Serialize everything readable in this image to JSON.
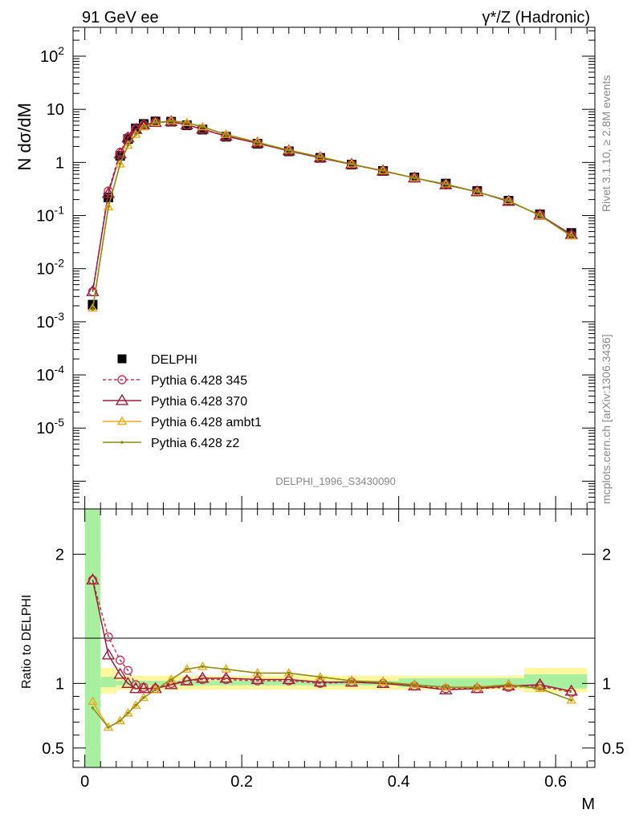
{
  "header": {
    "left": "91 GeV ee",
    "right": "γ*/Z (Hadronic)"
  },
  "side_labels": {
    "rivet": "Rivet 3.1.10, ≥ 2.8M events",
    "mcplots": "mcplots.cern.ch [arXiv:1306.3436]"
  },
  "watermark": "DELPHI_1996_S3430090",
  "chart_data": [
    {
      "type": "line",
      "panel": "main",
      "ylabel": "N dσ/dM",
      "yscale": "log",
      "ylim": [
        3e-07,
        350
      ],
      "xlim": [
        -0.015,
        0.65
      ],
      "yticks": [
        {
          "v": 1e-05,
          "m": "10",
          "e": "-5"
        },
        {
          "v": 0.0001,
          "m": "10",
          "e": "-4"
        },
        {
          "v": 0.001,
          "m": "10",
          "e": "-3"
        },
        {
          "v": 0.01,
          "m": "10",
          "e": "-2"
        },
        {
          "v": 0.1,
          "m": "10",
          "e": "-1"
        },
        {
          "v": 1,
          "m": "1",
          "e": ""
        },
        {
          "v": 10,
          "m": "10",
          "e": ""
        },
        {
          "v": 100,
          "m": "10",
          "e": "2"
        }
      ],
      "x": [
        0.01,
        0.03,
        0.045,
        0.055,
        0.065,
        0.075,
        0.09,
        0.11,
        0.13,
        0.15,
        0.18,
        0.22,
        0.26,
        0.3,
        0.34,
        0.38,
        0.42,
        0.46,
        0.5,
        0.54,
        0.58,
        0.62
      ],
      "series": [
        {
          "name": "DELPHI",
          "style": "data",
          "color": "#000000",
          "values": [
            0.0021,
            0.22,
            1.33,
            2.75,
            4.35,
            5.3,
            5.9,
            5.85,
            5.0,
            4.15,
            3.05,
            2.25,
            1.62,
            1.22,
            0.91,
            0.69,
            0.52,
            0.4,
            0.29,
            0.19,
            0.105,
            0.047
          ]
        },
        {
          "name": "Pythia 6.428 345",
          "style": "circle-dash",
          "color": "#c0395a",
          "values": [
            0.0037,
            0.29,
            1.55,
            3.0,
            4.3,
            5.1,
            5.7,
            5.85,
            5.1,
            4.2,
            3.1,
            2.3,
            1.65,
            1.22,
            0.92,
            0.69,
            0.51,
            0.38,
            0.28,
            0.185,
            0.102,
            0.043
          ]
        },
        {
          "name": "Pythia 6.428 370",
          "style": "triangle",
          "color": "#a01c3a",
          "values": [
            0.0037,
            0.26,
            1.45,
            2.9,
            4.2,
            5.05,
            5.65,
            5.85,
            5.1,
            4.25,
            3.12,
            2.3,
            1.65,
            1.22,
            0.92,
            0.69,
            0.51,
            0.38,
            0.28,
            0.185,
            0.102,
            0.044
          ]
        },
        {
          "name": "Pythia 6.428 ambt1",
          "style": "triangle",
          "color": "#f0a818",
          "values": [
            0.0018,
            0.145,
            0.93,
            2.1,
            3.35,
            4.65,
            5.6,
            6.05,
            5.6,
            4.65,
            3.35,
            2.4,
            1.7,
            1.27,
            0.93,
            0.7,
            0.51,
            0.39,
            0.28,
            0.19,
            0.1,
            0.041
          ]
        },
        {
          "name": "Pythia 6.428 z2",
          "style": "dot",
          "color": "#8c8c10",
          "values": [
            0.0017,
            0.145,
            0.94,
            2.1,
            3.35,
            4.65,
            5.6,
            6.05,
            5.6,
            4.7,
            3.35,
            2.4,
            1.7,
            1.27,
            0.93,
            0.7,
            0.51,
            0.39,
            0.28,
            0.19,
            0.1,
            0.041
          ]
        }
      ]
    },
    {
      "type": "line",
      "panel": "ratio",
      "ylabel": "Ratio to DELPHI",
      "xlabel": "M",
      "ylim": [
        0.35,
        2.35
      ],
      "xlim": [
        -0.015,
        0.65
      ],
      "yticks": [
        {
          "v": 0.5,
          "label": "0.5"
        },
        {
          "v": 1,
          "label": "1"
        },
        {
          "v": 2,
          "label": "2"
        }
      ],
      "xticks": [
        {
          "v": 0,
          "label": "0"
        },
        {
          "v": 0.2,
          "label": "0.2"
        },
        {
          "v": 0.4,
          "label": "0.4"
        },
        {
          "v": 0.6,
          "label": "0.6"
        }
      ],
      "x": [
        0.01,
        0.03,
        0.045,
        0.055,
        0.065,
        0.075,
        0.09,
        0.11,
        0.13,
        0.15,
        0.18,
        0.22,
        0.26,
        0.3,
        0.34,
        0.38,
        0.42,
        0.46,
        0.5,
        0.54,
        0.58,
        0.62
      ],
      "bands": [
        {
          "x0": 0.0,
          "x1": 0.02,
          "y0": 0.35,
          "y1": 2.35,
          "color": "#a8f0a0"
        },
        {
          "x0": 0.02,
          "x1": 0.04,
          "y0": 0.92,
          "y1": 1.12,
          "color": "#fdf8a0"
        },
        {
          "x0": 0.02,
          "x1": 0.04,
          "y0": 0.97,
          "y1": 1.05,
          "color": "#a8f0a0"
        },
        {
          "x0": 0.04,
          "x1": 0.64,
          "y0": 0.95,
          "y1": 1.06,
          "color": "#fdf8a0"
        },
        {
          "x0": 0.04,
          "x1": 0.4,
          "y0": 0.985,
          "y1": 1.02,
          "color": "#a8f0a0"
        },
        {
          "x0": 0.4,
          "x1": 0.64,
          "y0": 0.97,
          "y1": 1.04,
          "color": "#a8f0a0"
        },
        {
          "x0": 0.56,
          "x1": 0.64,
          "y0": 0.93,
          "y1": 1.12,
          "color": "#fdf8a0"
        },
        {
          "x0": 0.56,
          "x1": 0.64,
          "y0": 0.96,
          "y1": 1.07,
          "color": "#a8f0a0"
        }
      ],
      "series": [
        {
          "name": "Pythia 6.428 345",
          "style": "circle-dash",
          "color": "#c0395a",
          "values": [
            1.8,
            1.36,
            1.18,
            1.1,
            0.99,
            0.97,
            0.96,
            1.0,
            1.02,
            1.03,
            1.03,
            1.02,
            1.02,
            1.0,
            1.01,
            1.0,
            0.98,
            0.96,
            0.96,
            0.97,
            0.98,
            0.93
          ]
        },
        {
          "name": "Pythia 6.428 370",
          "style": "triangle",
          "color": "#a01c3a",
          "values": [
            1.8,
            1.22,
            1.07,
            1.0,
            0.96,
            0.96,
            0.96,
            0.99,
            1.02,
            1.04,
            1.04,
            1.03,
            1.03,
            1.01,
            1.01,
            1.0,
            0.98,
            0.95,
            0.96,
            0.98,
            0.99,
            0.94
          ]
        },
        {
          "name": "Pythia 6.428 ambt1",
          "style": "triangle",
          "color": "#f0a818",
          "values": [
            0.86,
            0.66,
            0.71,
            0.77,
            0.83,
            0.89,
            0.95,
            1.03,
            1.11,
            1.13,
            1.11,
            1.08,
            1.08,
            1.05,
            1.02,
            1.01,
            0.99,
            0.97,
            0.97,
            0.99,
            0.96,
            0.87
          ]
        },
        {
          "name": "Pythia 6.428 z2",
          "style": "dot",
          "color": "#8c8c10",
          "values": [
            0.81,
            0.66,
            0.71,
            0.77,
            0.83,
            0.89,
            0.95,
            1.03,
            1.11,
            1.13,
            1.11,
            1.08,
            1.08,
            1.05,
            1.02,
            1.01,
            0.99,
            0.97,
            0.97,
            0.99,
            0.96,
            0.87
          ]
        }
      ]
    }
  ]
}
